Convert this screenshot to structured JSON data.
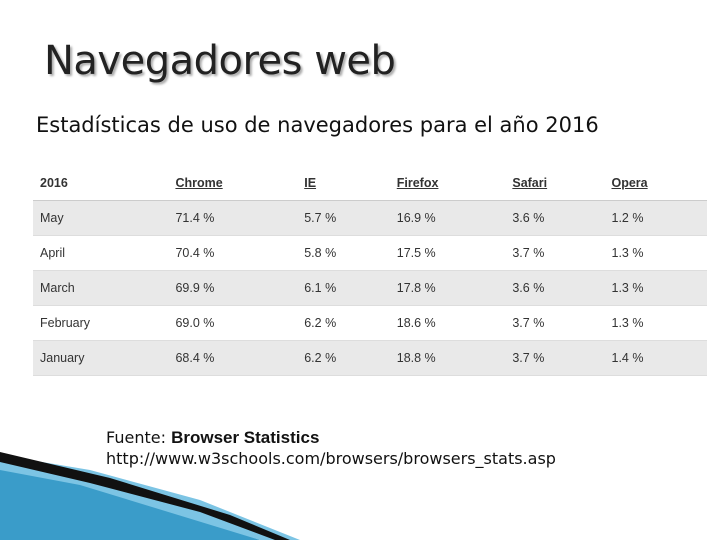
{
  "header": {
    "title": "Navegadores web",
    "subtitle": "Estadísticas de uso de navegadores para el año 2016"
  },
  "table": {
    "columns": [
      "2016",
      "Chrome",
      "IE",
      "Firefox",
      "Safari",
      "Opera"
    ],
    "rows": [
      [
        "May",
        "71.4 %",
        "5.7 %",
        "16.9 %",
        "3.6 %",
        "1.2 %"
      ],
      [
        "April",
        "70.4 %",
        "5.8 %",
        "17.5 %",
        "3.7 %",
        "1.3 %"
      ],
      [
        "March",
        "69.9 %",
        "6.1 %",
        "17.8 %",
        "3.6 %",
        "1.3 %"
      ],
      [
        "February",
        "69.0 %",
        "6.2 %",
        "18.6 %",
        "3.7 %",
        "1.3 %"
      ],
      [
        "January",
        "68.4 %",
        "6.2 %",
        "18.8 %",
        "3.7 %",
        "1.4 %"
      ]
    ]
  },
  "source": {
    "label": "Fuente:",
    "name": "Browser Statistics",
    "url": "http://www.w3schools.com/browsers/browsers_stats.asp"
  }
}
